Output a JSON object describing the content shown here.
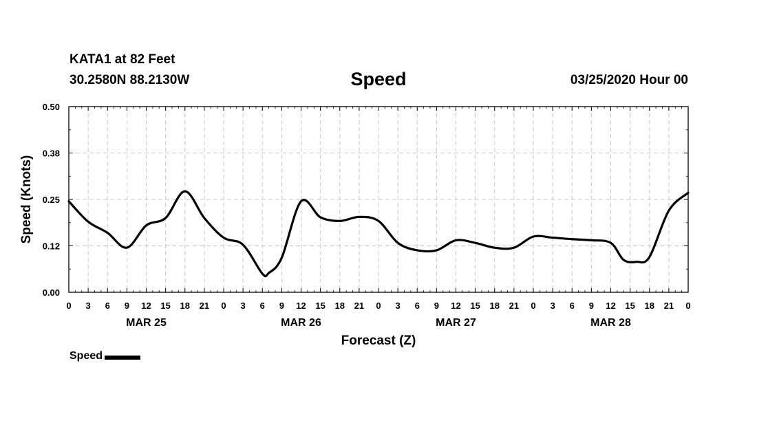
{
  "header": {
    "station": "KATA1 at 82 Feet",
    "coords": "30.2580N 88.2130W",
    "title": "Speed",
    "run": "03/25/2020 Hour 00"
  },
  "chart_data": {
    "type": "line",
    "title": "Speed",
    "xlabel": "Forecast (Z)",
    "ylabel": "Speed (Knots)",
    "ylim": [
      0,
      0.5
    ],
    "yticks": [
      "0.00",
      "0.12",
      "0.25",
      "0.38",
      "0.50"
    ],
    "ytick_values": [
      0,
      0.125,
      0.25,
      0.375,
      0.5
    ],
    "xlim": [
      0,
      96
    ],
    "xtick_labels": [
      "0",
      "3",
      "6",
      "9",
      "12",
      "15",
      "18",
      "21",
      "0",
      "3",
      "6",
      "9",
      "12",
      "15",
      "18",
      "21",
      "0",
      "3",
      "6",
      "9",
      "12",
      "15",
      "18",
      "21",
      "0",
      "3",
      "6",
      "9",
      "12",
      "15",
      "18",
      "21",
      "0"
    ],
    "day_labels": [
      {
        "label": "MAR 25",
        "hour": 12
      },
      {
        "label": "MAR 26",
        "hour": 36
      },
      {
        "label": "MAR 27",
        "hour": 60
      },
      {
        "label": "MAR 28",
        "hour": 84
      }
    ],
    "grid": true,
    "legend_position": "bottom-left",
    "series": [
      {
        "name": "Speed",
        "color": "#000000",
        "x": [
          0,
          3,
          6,
          9,
          12,
          15,
          18,
          21,
          24,
          27,
          30,
          31,
          33,
          36,
          39,
          42,
          45,
          48,
          51,
          54,
          57,
          60,
          63,
          66,
          69,
          72,
          75,
          78,
          81,
          84,
          86,
          88,
          90,
          93,
          96
        ],
        "y": [
          0.245,
          0.19,
          0.16,
          0.12,
          0.18,
          0.2,
          0.272,
          0.2,
          0.147,
          0.128,
          0.05,
          0.052,
          0.093,
          0.245,
          0.202,
          0.192,
          0.203,
          0.192,
          0.133,
          0.113,
          0.113,
          0.14,
          0.133,
          0.12,
          0.12,
          0.15,
          0.147,
          0.143,
          0.14,
          0.133,
          0.087,
          0.082,
          0.095,
          0.22,
          0.268
        ]
      }
    ]
  },
  "legend": {
    "label": "Speed"
  }
}
